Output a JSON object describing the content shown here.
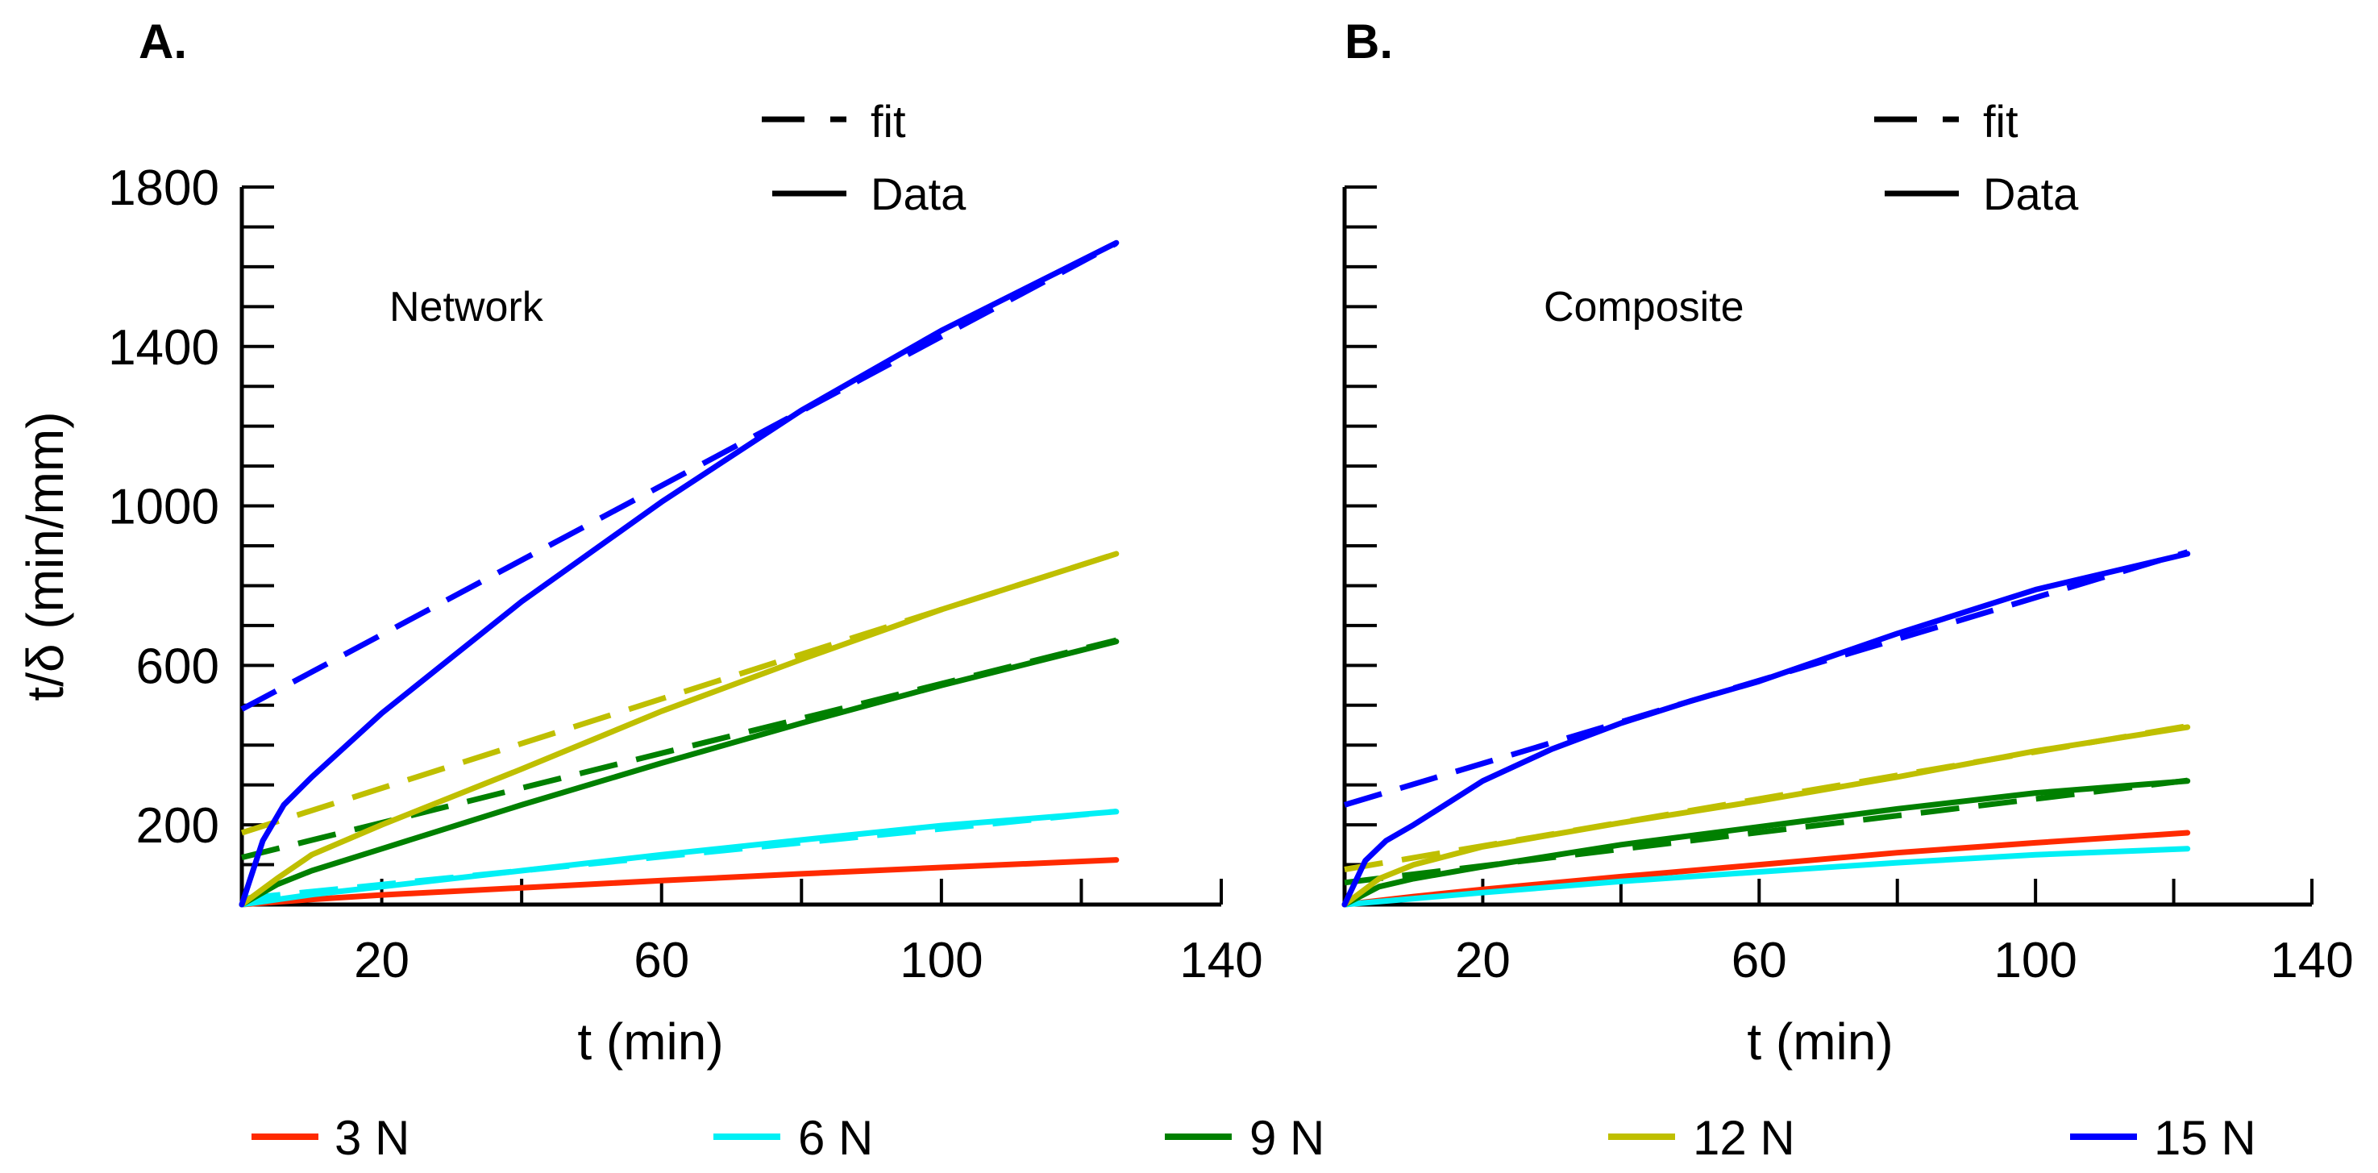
{
  "chart_data": [
    {
      "type": "line",
      "panel_label": "A.",
      "annotation": "Network",
      "xlabel": "t (min)",
      "ylabel": "t/δ (min/mm)",
      "xlim": [
        0,
        140
      ],
      "ylim": [
        0,
        1800
      ],
      "xticks": [
        20,
        60,
        100,
        140
      ],
      "yticks": [
        200,
        600,
        1000,
        1400,
        1800
      ],
      "style_legend": {
        "dash": "fit",
        "solid": "Data"
      },
      "series": [
        {
          "name": "3 N",
          "color": "#ff2a00",
          "data_x": [
            0,
            10,
            20,
            40,
            60,
            80,
            100,
            125
          ],
          "data_y": [
            0,
            13,
            24,
            42,
            60,
            77,
            93,
            112
          ],
          "fit_intercept": null,
          "fit_slope": null
        },
        {
          "name": "6 N",
          "color": "#00f0f5",
          "data_x": [
            0,
            10,
            20,
            40,
            60,
            80,
            100,
            125
          ],
          "data_y": [
            0,
            25,
            45,
            85,
            125,
            162,
            198,
            233
          ],
          "fit_intercept": 15,
          "fit_slope": 1.75
        },
        {
          "name": "9 N",
          "color": "#008000",
          "data_x": [
            0,
            5,
            10,
            20,
            40,
            60,
            80,
            100,
            125
          ],
          "data_y": [
            0,
            50,
            85,
            140,
            250,
            355,
            455,
            550,
            660
          ],
          "fit_intercept": 118,
          "fit_slope": 4.36
        },
        {
          "name": "12 N",
          "color": "#bfbf00",
          "data_x": [
            0,
            5,
            10,
            20,
            40,
            60,
            80,
            100,
            125
          ],
          "data_y": [
            0,
            65,
            125,
            200,
            340,
            485,
            615,
            740,
            880
          ],
          "fit_intercept": 180,
          "fit_slope": 5.6
        },
        {
          "name": "15 N",
          "color": "#0000ff",
          "data_x": [
            0,
            3,
            6,
            10,
            20,
            30,
            40,
            60,
            80,
            100,
            125
          ],
          "data_y": [
            0,
            160,
            250,
            320,
            480,
            620,
            760,
            1010,
            1240,
            1440,
            1660
          ],
          "fit_intercept": 490,
          "fit_slope": 9.35
        }
      ]
    },
    {
      "type": "line",
      "panel_label": "B.",
      "annotation": "Composite",
      "xlabel": "t (min)",
      "ylabel": "",
      "xlim": [
        0,
        140
      ],
      "ylim": [
        0,
        1800
      ],
      "xticks": [
        20,
        60,
        100,
        140
      ],
      "yticks": [],
      "style_legend": {
        "dash": "fit",
        "solid": "Data"
      },
      "series": [
        {
          "name": "3 N",
          "color": "#ff2a00",
          "data_x": [
            0,
            10,
            20,
            40,
            60,
            80,
            100,
            122
          ],
          "data_y": [
            0,
            20,
            38,
            70,
            100,
            130,
            155,
            180
          ],
          "fit_intercept": null,
          "fit_slope": null
        },
        {
          "name": "6 N",
          "color": "#00f0f5",
          "data_x": [
            0,
            10,
            20,
            40,
            60,
            80,
            100,
            122
          ],
          "data_y": [
            0,
            15,
            30,
            58,
            82,
            105,
            125,
            140
          ],
          "fit_intercept": null,
          "fit_slope": null
        },
        {
          "name": "9 N",
          "color": "#008000",
          "data_x": [
            0,
            5,
            10,
            20,
            40,
            60,
            80,
            100,
            122
          ],
          "data_y": [
            0,
            45,
            65,
            95,
            150,
            195,
            240,
            280,
            310
          ],
          "fit_intercept": 55,
          "fit_slope": 2.1
        },
        {
          "name": "12 N",
          "color": "#bfbf00",
          "data_x": [
            0,
            5,
            10,
            20,
            40,
            60,
            80,
            100,
            122
          ],
          "data_y": [
            0,
            65,
            100,
            145,
            205,
            260,
            320,
            385,
            445
          ],
          "fit_intercept": 88,
          "fit_slope": 2.95
        },
        {
          "name": "15 N",
          "color": "#0000ff",
          "data_x": [
            0,
            3,
            6,
            10,
            20,
            30,
            40,
            50,
            60,
            80,
            100,
            122
          ],
          "data_y": [
            0,
            110,
            160,
            200,
            310,
            390,
            455,
            510,
            560,
            680,
            790,
            880
          ],
          "fit_intercept": 250,
          "fit_slope": 5.2
        }
      ]
    }
  ],
  "color_legend": [
    {
      "label": "3 N",
      "color": "#ff2a00"
    },
    {
      "label": "6 N",
      "color": "#00f0f5"
    },
    {
      "label": "9 N",
      "color": "#008000"
    },
    {
      "label": "12 N",
      "color": "#bfbf00"
    },
    {
      "label": "15 N",
      "color": "#0000ff"
    }
  ]
}
